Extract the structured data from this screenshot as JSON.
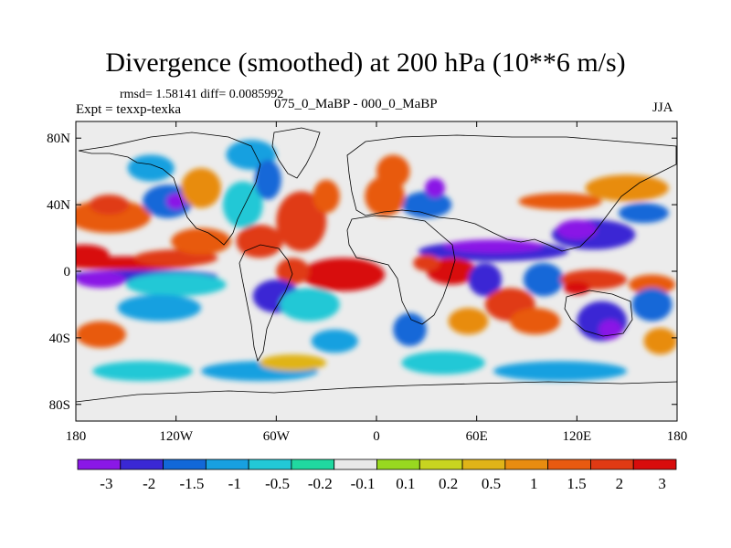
{
  "chart_data": {
    "type": "heatmap",
    "title": "Divergence (smoothed) at 200 hPa (10**6 m/s)",
    "stats_label": "rmsd= 1.58141 diff= 0.0085992",
    "experiment_label": "Expt = texxp-texka",
    "experiment_names": "075_0_MaBP - 000_0_MaBP",
    "season": "JJA",
    "x_range": [
      -180,
      180
    ],
    "y_range": [
      -90,
      90
    ],
    "x_ticks": [
      {
        "value": -180,
        "label": "180"
      },
      {
        "value": -120,
        "label": "120W"
      },
      {
        "value": -60,
        "label": "60W"
      },
      {
        "value": 0,
        "label": "0"
      },
      {
        "value": 60,
        "label": "60E"
      },
      {
        "value": 120,
        "label": "120E"
      },
      {
        "value": 180,
        "label": "180"
      }
    ],
    "y_ticks": [
      {
        "value": 80,
        "label": "80N"
      },
      {
        "value": 40,
        "label": "40N"
      },
      {
        "value": 0,
        "label": "0"
      },
      {
        "value": -40,
        "label": "40S"
      },
      {
        "value": -80,
        "label": "80S"
      }
    ],
    "colorbar_levels": [
      "-3",
      "-2",
      "-1.5",
      "-1",
      "-0.5",
      "-0.2",
      "-0.1",
      "0.1",
      "0.2",
      "0.5",
      "1",
      "1.5",
      "2",
      "3"
    ],
    "colorbar_colors": [
      "#8a18e6",
      "#3a28d4",
      "#1268d8",
      "#18a0e0",
      "#22c8d6",
      "#20d8a0",
      "#e8e8e8",
      "#98d820",
      "#c8d420",
      "#e0b418",
      "#e88c10",
      "#e85a10",
      "#e03a14",
      "#d80c0c"
    ],
    "features": [
      {
        "lon": -150,
        "lat": 5,
        "rx": 45,
        "ry": 4,
        "level": 13
      },
      {
        "lon": -175,
        "lat": 10,
        "rx": 15,
        "ry": 6,
        "level": 13
      },
      {
        "lon": -120,
        "lat": 8,
        "rx": 25,
        "ry": 5,
        "level": 12
      },
      {
        "lon": -140,
        "lat": -3,
        "rx": 45,
        "ry": 4,
        "level": 1
      },
      {
        "lon": -165,
        "lat": -5,
        "rx": 15,
        "ry": 5,
        "level": 0
      },
      {
        "lon": -120,
        "lat": -8,
        "rx": 30,
        "ry": 7,
        "level": 4
      },
      {
        "lon": -130,
        "lat": -22,
        "rx": 25,
        "ry": 8,
        "level": 3
      },
      {
        "lon": -160,
        "lat": 33,
        "rx": 25,
        "ry": 10,
        "level": 11
      },
      {
        "lon": -160,
        "lat": 40,
        "rx": 12,
        "ry": 6,
        "level": 12
      },
      {
        "lon": -165,
        "lat": -38,
        "rx": 15,
        "ry": 8,
        "level": 11
      },
      {
        "lon": -125,
        "lat": 42,
        "rx": 15,
        "ry": 10,
        "level": 2
      },
      {
        "lon": -120,
        "lat": 42,
        "rx": 6,
        "ry": 5,
        "level": 0
      },
      {
        "lon": -135,
        "lat": 62,
        "rx": 14,
        "ry": 8,
        "level": 3
      },
      {
        "lon": -105,
        "lat": 50,
        "rx": 12,
        "ry": 12,
        "level": 10
      },
      {
        "lon": -80,
        "lat": 40,
        "rx": 12,
        "ry": 14,
        "level": 4
      },
      {
        "lon": -75,
        "lat": 70,
        "rx": 15,
        "ry": 9,
        "level": 3
      },
      {
        "lon": -65,
        "lat": 55,
        "rx": 8,
        "ry": 12,
        "level": 2
      },
      {
        "lon": -105,
        "lat": 18,
        "rx": 18,
        "ry": 8,
        "level": 11
      },
      {
        "lon": -70,
        "lat": 18,
        "rx": 14,
        "ry": 10,
        "level": 12
      },
      {
        "lon": -45,
        "lat": 30,
        "rx": 15,
        "ry": 18,
        "level": 12
      },
      {
        "lon": -30,
        "lat": 45,
        "rx": 8,
        "ry": 10,
        "level": 11
      },
      {
        "lon": -20,
        "lat": -2,
        "rx": 25,
        "ry": 10,
        "level": 13
      },
      {
        "lon": -50,
        "lat": 0,
        "rx": 10,
        "ry": 8,
        "level": 12
      },
      {
        "lon": -60,
        "lat": -15,
        "rx": 14,
        "ry": 10,
        "level": 1
      },
      {
        "lon": -40,
        "lat": -20,
        "rx": 18,
        "ry": 10,
        "level": 4
      },
      {
        "lon": -25,
        "lat": -42,
        "rx": 14,
        "ry": 7,
        "level": 3
      },
      {
        "lon": -70,
        "lat": -60,
        "rx": 35,
        "ry": 6,
        "level": 3
      },
      {
        "lon": -140,
        "lat": -60,
        "rx": 30,
        "ry": 6,
        "level": 4
      },
      {
        "lon": -50,
        "lat": -55,
        "rx": 20,
        "ry": 5,
        "level": 9
      },
      {
        "lon": 30,
        "lat": 40,
        "rx": 15,
        "ry": 8,
        "level": 2
      },
      {
        "lon": 35,
        "lat": 50,
        "rx": 6,
        "ry": 6,
        "level": 0
      },
      {
        "lon": 5,
        "lat": 45,
        "rx": 12,
        "ry": 12,
        "level": 11
      },
      {
        "lon": 10,
        "lat": 60,
        "rx": 10,
        "ry": 10,
        "level": 11
      },
      {
        "lon": 70,
        "lat": 12,
        "rx": 45,
        "ry": 6,
        "level": 1
      },
      {
        "lon": 70,
        "lat": 15,
        "rx": 30,
        "ry": 4,
        "level": 0
      },
      {
        "lon": 130,
        "lat": 22,
        "rx": 25,
        "ry": 9,
        "level": 1
      },
      {
        "lon": 120,
        "lat": 25,
        "rx": 12,
        "ry": 6,
        "level": 0
      },
      {
        "lon": 160,
        "lat": 35,
        "rx": 15,
        "ry": 6,
        "level": 2
      },
      {
        "lon": 110,
        "lat": 42,
        "rx": 25,
        "ry": 5,
        "level": 11
      },
      {
        "lon": 150,
        "lat": 50,
        "rx": 25,
        "ry": 8,
        "level": 10
      },
      {
        "lon": 45,
        "lat": 0,
        "rx": 15,
        "ry": 8,
        "level": 13
      },
      {
        "lon": 30,
        "lat": 5,
        "rx": 8,
        "ry": 5,
        "level": 12
      },
      {
        "lon": 65,
        "lat": -5,
        "rx": 10,
        "ry": 10,
        "level": 1
      },
      {
        "lon": 100,
        "lat": -5,
        "rx": 12,
        "ry": 10,
        "level": 2
      },
      {
        "lon": 130,
        "lat": -5,
        "rx": 20,
        "ry": 6,
        "level": 12
      },
      {
        "lon": 120,
        "lat": -10,
        "rx": 8,
        "ry": 4,
        "level": 13
      },
      {
        "lon": 165,
        "lat": -8,
        "rx": 14,
        "ry": 6,
        "level": 11
      },
      {
        "lon": 135,
        "lat": -30,
        "rx": 15,
        "ry": 12,
        "level": 1
      },
      {
        "lon": 140,
        "lat": -35,
        "rx": 7,
        "ry": 6,
        "level": 0
      },
      {
        "lon": 165,
        "lat": -20,
        "rx": 12,
        "ry": 10,
        "level": 2
      },
      {
        "lon": 80,
        "lat": -20,
        "rx": 15,
        "ry": 10,
        "level": 12
      },
      {
        "lon": 95,
        "lat": -30,
        "rx": 15,
        "ry": 8,
        "level": 11
      },
      {
        "lon": 55,
        "lat": -30,
        "rx": 12,
        "ry": 8,
        "level": 10
      },
      {
        "lon": 20,
        "lat": -35,
        "rx": 10,
        "ry": 10,
        "level": 2
      },
      {
        "lon": 40,
        "lat": -55,
        "rx": 25,
        "ry": 7,
        "level": 4
      },
      {
        "lon": 170,
        "lat": -42,
        "rx": 10,
        "ry": 8,
        "level": 10
      },
      {
        "lon": 110,
        "lat": -60,
        "rx": 40,
        "ry": 6,
        "level": 3
      }
    ]
  }
}
